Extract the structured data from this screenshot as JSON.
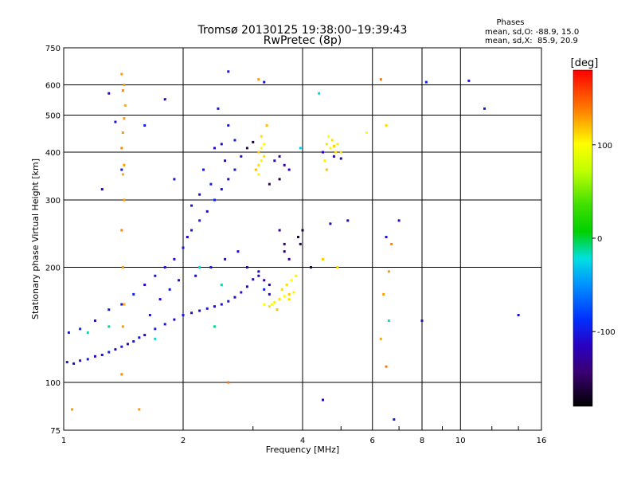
{
  "header": {
    "title": "Tromsø 20130125 19:38:00–19:39:43",
    "subtitle": "RwPretec (8p)"
  },
  "stats": {
    "label": "Phases",
    "line_o": "mean, sd,O: -88.9, 15.0",
    "line_x": "mean, sd,X:  85.9, 20.9"
  },
  "colorbar": {
    "unit": "[deg]",
    "range": [
      -180,
      180
    ],
    "ticks": [
      {
        "value": 100,
        "label": "100"
      },
      {
        "value": 0,
        "label": "0"
      },
      {
        "value": -100,
        "label": "-100"
      }
    ]
  },
  "chart_data": {
    "type": "scatter",
    "xlabel": "Frequency [MHz]",
    "ylabel": "Stationary phase Virtual Height [km]",
    "xscale": "log",
    "yscale": "log",
    "xlim": [
      1,
      16
    ],
    "ylim": [
      75,
      750
    ],
    "xticks": [
      {
        "value": 1,
        "label": "1"
      },
      {
        "value": 2,
        "label": "2"
      },
      {
        "value": 4,
        "label": "4"
      },
      {
        "value": 6,
        "label": "6"
      },
      {
        "value": 8,
        "label": "8"
      },
      {
        "value": 10,
        "label": "10"
      },
      {
        "value": 16,
        "label": "16"
      }
    ],
    "yticks": [
      {
        "value": 75,
        "label": "75"
      },
      {
        "value": 100,
        "label": "100"
      },
      {
        "value": 200,
        "label": "200"
      },
      {
        "value": 300,
        "label": "300"
      },
      {
        "value": 400,
        "label": "400"
      },
      {
        "value": 500,
        "label": "500"
      },
      {
        "value": 600,
        "label": "600"
      },
      {
        "value": 750,
        "label": "750"
      }
    ],
    "grid": true,
    "color_by": "phase_deg",
    "series": [
      {
        "points": [
          [
            1.02,
            113,
            -100
          ],
          [
            1.06,
            112,
            -110
          ],
          [
            1.1,
            114,
            -105
          ],
          [
            1.15,
            115,
            -100
          ],
          [
            1.2,
            117,
            -110
          ],
          [
            1.25,
            118,
            -105
          ],
          [
            1.3,
            120,
            -95
          ],
          [
            1.35,
            122,
            -110
          ],
          [
            1.4,
            124,
            -100
          ],
          [
            1.45,
            126,
            -115
          ],
          [
            1.5,
            128,
            -105
          ],
          [
            1.55,
            131,
            -100
          ],
          [
            1.6,
            133,
            -110
          ],
          [
            1.7,
            138,
            -95
          ],
          [
            1.8,
            142,
            -105
          ],
          [
            1.9,
            146,
            -110
          ],
          [
            2.0,
            150,
            -100
          ],
          [
            2.1,
            152,
            -105
          ],
          [
            2.2,
            154,
            -110
          ],
          [
            2.3,
            156,
            -100
          ],
          [
            2.4,
            158,
            -115
          ],
          [
            2.5,
            160,
            -105
          ],
          [
            2.6,
            163,
            -100
          ],
          [
            2.7,
            167,
            -110
          ],
          [
            2.8,
            172,
            -105
          ],
          [
            2.9,
            178,
            -120
          ],
          [
            3.0,
            186,
            -110
          ],
          [
            3.1,
            195,
            -115
          ],
          [
            1.03,
            135,
            -100
          ],
          [
            1.1,
            138,
            -90
          ],
          [
            1.2,
            145,
            -110
          ],
          [
            1.3,
            155,
            -100
          ],
          [
            1.4,
            160,
            -105
          ],
          [
            1.5,
            170,
            -95
          ],
          [
            1.6,
            180,
            -110
          ],
          [
            1.7,
            190,
            -100
          ],
          [
            1.8,
            200,
            -105
          ],
          [
            1.9,
            210,
            -110
          ],
          [
            2.0,
            225,
            -100
          ],
          [
            2.05,
            240,
            -115
          ],
          [
            2.1,
            250,
            -105
          ],
          [
            2.2,
            265,
            -100
          ],
          [
            2.3,
            280,
            -110
          ],
          [
            2.4,
            300,
            -95
          ],
          [
            2.5,
            320,
            -105
          ],
          [
            2.6,
            340,
            -110
          ],
          [
            2.7,
            360,
            -100
          ],
          [
            2.8,
            390,
            -105
          ],
          [
            2.5,
            420,
            -110
          ],
          [
            2.6,
            470,
            -100
          ],
          [
            2.45,
            520,
            -105
          ],
          [
            2.55,
            380,
            -115
          ],
          [
            2.35,
            330,
            -100
          ],
          [
            2.2,
            310,
            -110
          ],
          [
            2.1,
            290,
            -105
          ],
          [
            2.25,
            360,
            -100
          ],
          [
            2.4,
            410,
            -110
          ],
          [
            2.7,
            430,
            -95
          ],
          [
            1.65,
            150,
            -100
          ],
          [
            1.75,
            165,
            -110
          ],
          [
            1.85,
            175,
            -100
          ],
          [
            1.95,
            185,
            -105
          ],
          [
            2.15,
            190,
            -110
          ],
          [
            2.35,
            200,
            -100
          ],
          [
            2.55,
            210,
            -105
          ],
          [
            2.75,
            220,
            -110
          ],
          [
            2.9,
            200,
            -115
          ],
          [
            3.1,
            190,
            -120
          ],
          [
            3.2,
            185,
            -130
          ],
          [
            3.3,
            180,
            -125
          ],
          [
            3.2,
            175,
            -95
          ],
          [
            3.3,
            170,
            -110
          ],
          [
            3.4,
            380,
            -120
          ],
          [
            3.5,
            390,
            -130
          ],
          [
            3.6,
            370,
            -125
          ],
          [
            3.7,
            360,
            -115
          ],
          [
            3.5,
            250,
            -130
          ],
          [
            3.6,
            230,
            -140
          ],
          [
            3.7,
            210,
            -135
          ],
          [
            4.5,
            400,
            -120
          ],
          [
            4.8,
            390,
            -115
          ],
          [
            5.0,
            385,
            -125
          ],
          [
            4.7,
            260,
            -110
          ],
          [
            5.2,
            265,
            -115
          ],
          [
            6.5,
            240,
            -105
          ],
          [
            8.2,
            610,
            -95
          ],
          [
            10.5,
            615,
            -105
          ],
          [
            11.5,
            520,
            -100
          ],
          [
            14.0,
            150,
            -105
          ],
          [
            7.0,
            265,
            -110
          ],
          [
            6.8,
            80,
            -100
          ],
          [
            8.0,
            145,
            -110
          ],
          [
            4.5,
            90,
            -120
          ],
          [
            1.3,
            570,
            -110
          ],
          [
            1.35,
            480,
            -105
          ],
          [
            1.6,
            470,
            -100
          ],
          [
            1.8,
            550,
            -110
          ],
          [
            2.6,
            650,
            -105
          ],
          [
            3.2,
            610,
            -110
          ],
          [
            1.25,
            320,
            -115
          ],
          [
            1.4,
            360,
            -100
          ],
          [
            1.9,
            340,
            -105
          ]
        ]
      },
      {
        "points": [
          [
            3.05,
            360,
            120
          ],
          [
            3.1,
            370,
            110
          ],
          [
            3.15,
            380,
            105
          ],
          [
            3.1,
            400,
            115
          ],
          [
            3.2,
            420,
            100
          ],
          [
            3.15,
            440,
            110
          ],
          [
            3.25,
            470,
            120
          ],
          [
            3.1,
            350,
            105
          ],
          [
            3.2,
            390,
            110
          ],
          [
            3.15,
            410,
            100
          ],
          [
            4.6,
            420,
            110
          ],
          [
            4.7,
            410,
            100
          ],
          [
            4.8,
            415,
            115
          ],
          [
            4.9,
            420,
            105
          ],
          [
            5.0,
            400,
            110
          ],
          [
            4.65,
            440,
            100
          ],
          [
            4.75,
            430,
            110
          ],
          [
            4.55,
            380,
            105
          ],
          [
            4.6,
            360,
            120
          ],
          [
            4.85,
            400,
            110
          ],
          [
            3.2,
            160,
            100
          ],
          [
            3.3,
            158,
            110
          ],
          [
            3.4,
            162,
            105
          ],
          [
            3.5,
            165,
            110
          ],
          [
            3.6,
            168,
            100
          ],
          [
            3.7,
            170,
            115
          ],
          [
            3.8,
            172,
            105
          ],
          [
            3.65,
            180,
            110
          ],
          [
            3.75,
            185,
            100
          ],
          [
            3.55,
            175,
            110
          ],
          [
            3.45,
            155,
            120
          ],
          [
            3.35,
            160,
            95
          ],
          [
            3.85,
            190,
            105
          ],
          [
            3.7,
            165,
            110
          ],
          [
            4.9,
            200,
            110
          ],
          [
            4.5,
            210,
            115
          ],
          [
            5.8,
            450,
            100
          ],
          [
            6.5,
            470,
            110
          ]
        ]
      },
      {
        "points": [
          [
            1.4,
            640,
            130
          ],
          [
            1.42,
            600,
            130
          ],
          [
            1.41,
            580,
            135
          ],
          [
            1.43,
            530,
            125
          ],
          [
            1.42,
            490,
            130
          ],
          [
            1.41,
            450,
            130
          ],
          [
            1.4,
            410,
            135
          ],
          [
            1.42,
            370,
            130
          ],
          [
            1.41,
            350,
            125
          ],
          [
            1.42,
            300,
            130
          ],
          [
            1.4,
            250,
            135
          ],
          [
            1.41,
            200,
            130
          ],
          [
            1.42,
            160,
            125
          ],
          [
            1.41,
            140,
            130
          ],
          [
            1.4,
            105,
            135
          ],
          [
            1.55,
            85,
            130
          ],
          [
            1.05,
            85,
            130
          ],
          [
            6.3,
            620,
            140
          ],
          [
            6.7,
            230,
            135
          ],
          [
            6.6,
            195,
            130
          ],
          [
            6.4,
            170,
            130
          ],
          [
            6.5,
            110,
            140
          ],
          [
            6.3,
            130,
            125
          ],
          [
            3.1,
            620,
            130
          ],
          [
            2.6,
            100,
            140
          ]
        ]
      },
      {
        "points": [
          [
            1.15,
            135,
            -15
          ],
          [
            1.3,
            140,
            -10
          ],
          [
            2.2,
            200,
            -20
          ],
          [
            2.5,
            180,
            -15
          ],
          [
            1.7,
            130,
            -25
          ],
          [
            4.4,
            570,
            -20
          ],
          [
            3.95,
            410,
            -30
          ],
          [
            6.6,
            145,
            -20
          ],
          [
            2.4,
            140,
            -10
          ]
        ]
      },
      {
        "points": [
          [
            3.9,
            240,
            -160
          ],
          [
            3.95,
            230,
            -155
          ],
          [
            4.0,
            250,
            -165
          ],
          [
            3.6,
            220,
            -150
          ],
          [
            4.2,
            200,
            -160
          ],
          [
            3.3,
            330,
            -150
          ],
          [
            3.5,
            340,
            -160
          ],
          [
            2.9,
            410,
            -155
          ],
          [
            3.0,
            425,
            -160
          ]
        ]
      }
    ]
  }
}
